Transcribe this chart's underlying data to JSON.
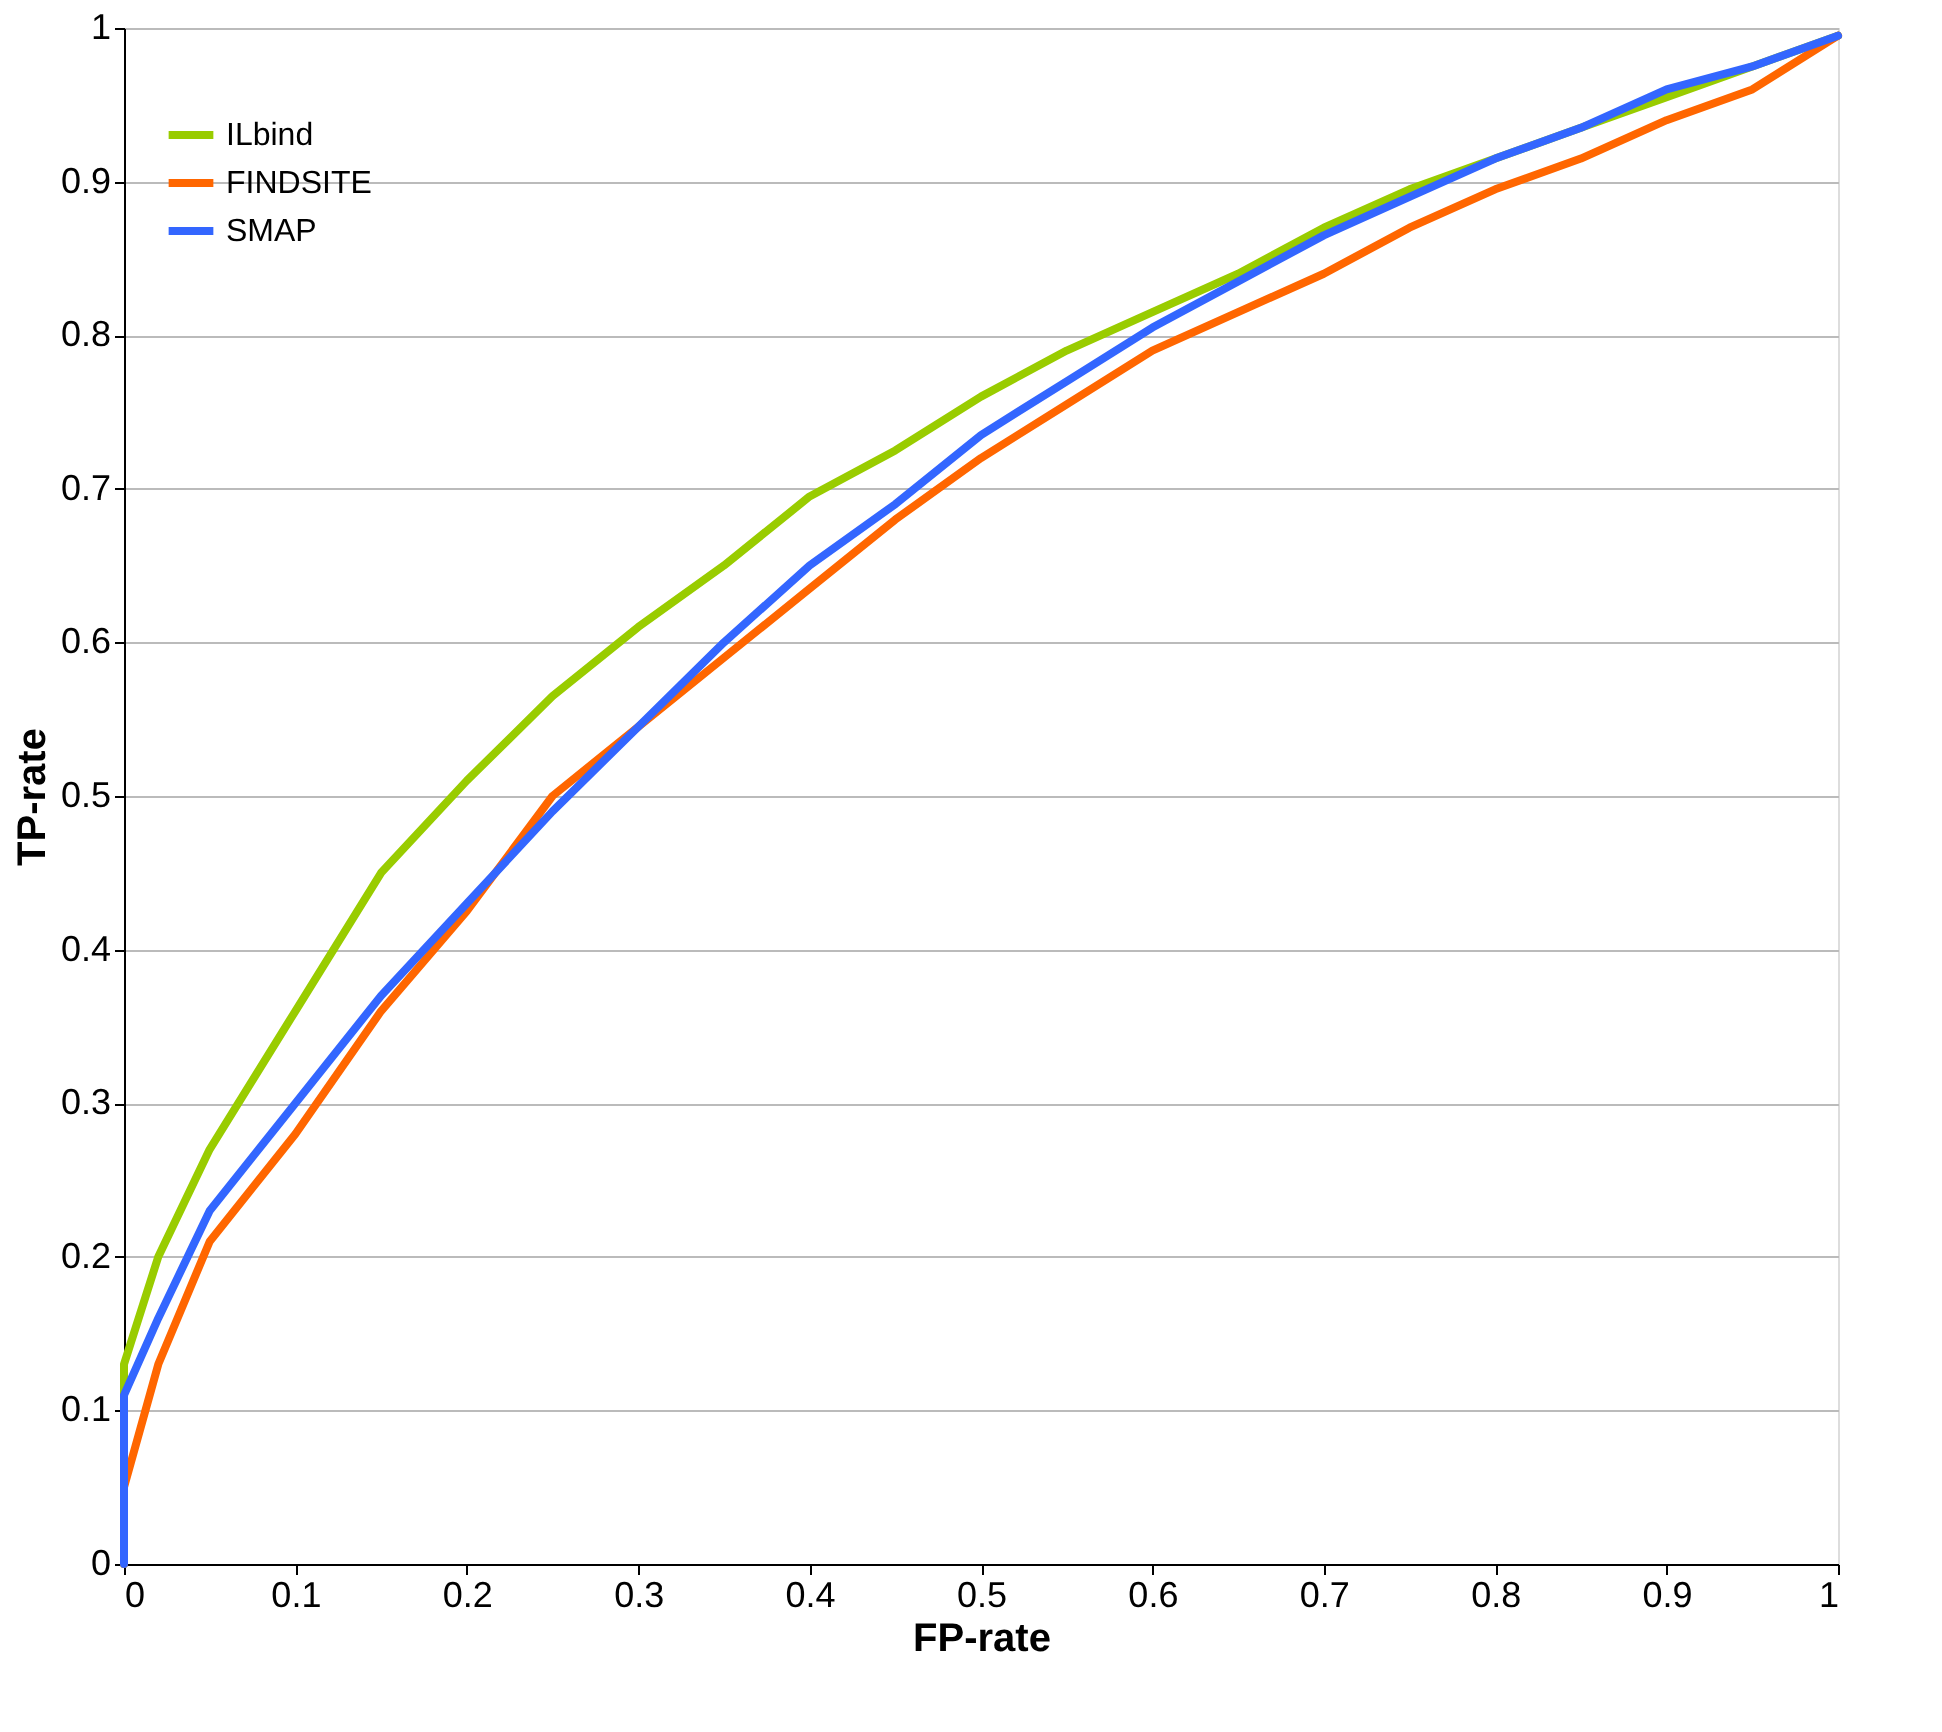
{
  "chart_data": {
    "type": "line",
    "xlabel": "FP-rate",
    "ylabel": "TP-rate",
    "xlim": [
      0,
      1
    ],
    "ylim": [
      0,
      1
    ],
    "xticks": [
      0,
      0.1,
      0.2,
      0.3,
      0.4,
      0.5,
      0.6,
      0.7,
      0.8,
      0.9,
      1
    ],
    "yticks": [
      0,
      0.1,
      0.2,
      0.3,
      0.4,
      0.5,
      0.6,
      0.7,
      0.8,
      0.9,
      1
    ],
    "grid": "y",
    "legend": "top left",
    "marker": "none",
    "line_style": "solid",
    "x": [
      0,
      0,
      0.02,
      0.05,
      0.1,
      0.15,
      0.2,
      0.25,
      0.3,
      0.35,
      0.4,
      0.45,
      0.5,
      0.55,
      0.6,
      0.65,
      0.7,
      0.75,
      0.8,
      0.85,
      0.9,
      0.95,
      1
    ],
    "series": [
      {
        "name": "ILbind",
        "color": "#99cc00",
        "values": [
          0,
          0.13,
          0.2,
          0.27,
          0.36,
          0.45,
          0.51,
          0.565,
          0.61,
          0.65,
          0.695,
          0.725,
          0.76,
          0.79,
          0.815,
          0.84,
          0.87,
          0.895,
          0.915,
          0.935,
          0.955,
          0.975,
          0.995
        ]
      },
      {
        "name": "FINDSITE",
        "color": "#ff6600",
        "values": [
          0,
          0.05,
          0.13,
          0.21,
          0.28,
          0.36,
          0.425,
          0.5,
          0.545,
          0.59,
          0.635,
          0.68,
          0.72,
          0.755,
          0.79,
          0.815,
          0.84,
          0.87,
          0.895,
          0.915,
          0.94,
          0.96,
          0.995
        ]
      },
      {
        "name": "SMAP",
        "color": "#3366ff",
        "values": [
          0,
          0.11,
          0.16,
          0.23,
          0.3,
          0.37,
          0.43,
          0.49,
          0.545,
          0.6,
          0.65,
          0.69,
          0.735,
          0.77,
          0.805,
          0.835,
          0.865,
          0.89,
          0.915,
          0.935,
          0.96,
          0.975,
          0.995
        ]
      }
    ]
  }
}
